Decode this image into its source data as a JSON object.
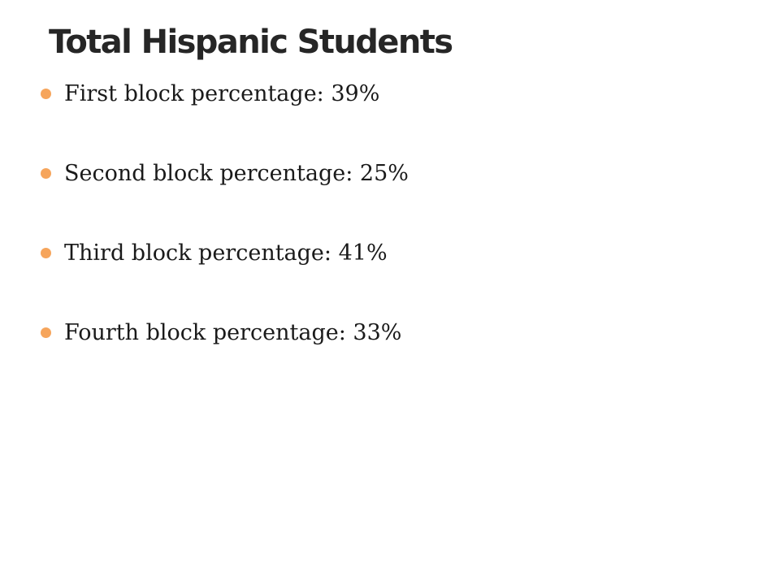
{
  "slide": {
    "title": "Total Hispanic Students",
    "bullet_color": "#F6A55C",
    "bullets": [
      {
        "text": "First block percentage: 39%",
        "icon": "bullet-dot-icon"
      },
      {
        "text": "Second block percentage: 25%",
        "icon": "bullet-dot-icon"
      },
      {
        "text": "Third block percentage: 41%",
        "icon": "bullet-dot-icon"
      },
      {
        "text": "Fourth block percentage: 33%",
        "icon": "bullet-dot-icon"
      }
    ]
  }
}
